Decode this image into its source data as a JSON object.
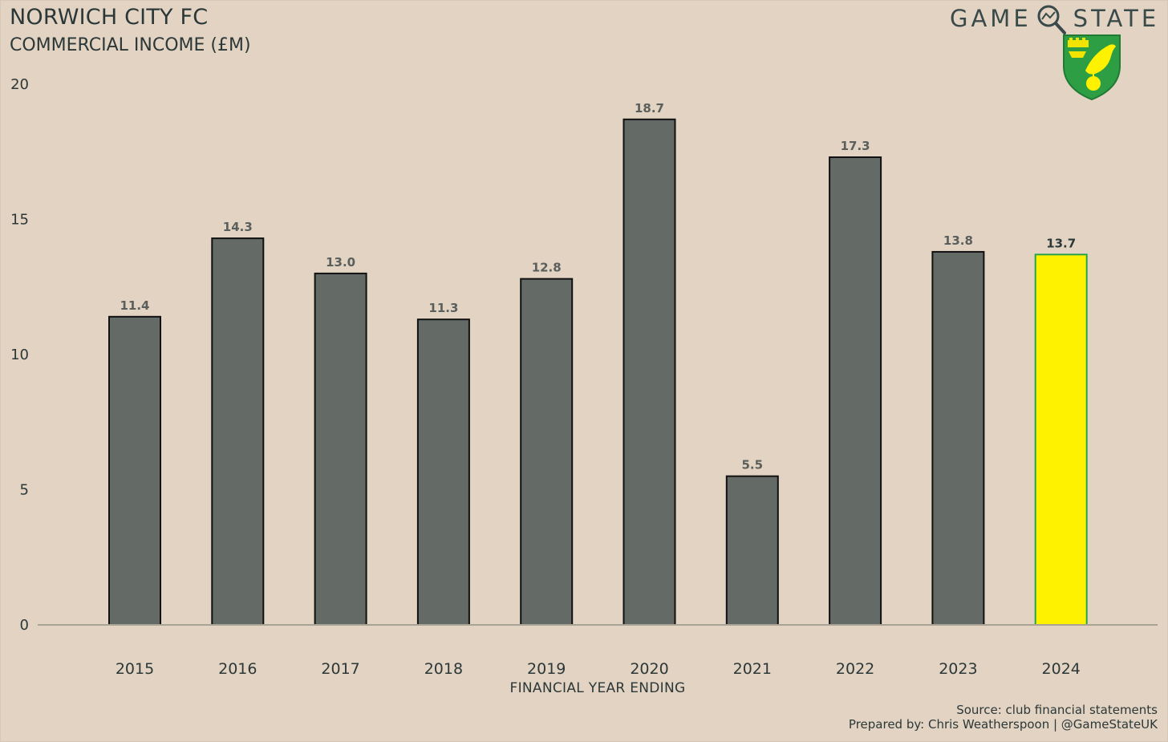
{
  "header": {
    "title": "NORWICH CITY FC",
    "subtitle": "COMMERCIAL INCOME (£M)",
    "brand_left": "GAME",
    "brand_right": "STATE"
  },
  "footer": {
    "source": "Source: club financial statements",
    "credit": "Prepared by: Chris Weatherspoon | @GameStateUK"
  },
  "colors": {
    "background": "#e2d3c3",
    "bar": "#646a65",
    "highlight": "#fff200",
    "highlight_border": "#2aa24a",
    "axis": "#a9a395"
  },
  "icons": [
    "magnifier-icon",
    "club-crest-icon"
  ],
  "chart_data": {
    "type": "bar",
    "title": "NORWICH CITY FC",
    "subtitle": "COMMERCIAL INCOME (£M)",
    "xlabel": "FINANCIAL YEAR ENDING",
    "ylabel": "",
    "categories": [
      "2015",
      "2016",
      "2017",
      "2018",
      "2019",
      "2020",
      "2021",
      "2022",
      "2023",
      "2024"
    ],
    "values": [
      11.4,
      14.3,
      13.0,
      11.3,
      12.8,
      18.7,
      5.5,
      17.3,
      13.8,
      13.7
    ],
    "data_labels": [
      "11.4",
      "14.3",
      "13.0",
      "11.3",
      "12.8",
      "18.7",
      "5.5",
      "17.3",
      "13.8",
      "13.7"
    ],
    "highlight_category": "2024",
    "ylim": [
      0,
      20
    ],
    "yticks": [
      "0",
      "5",
      "10",
      "15",
      "20"
    ],
    "grid": false,
    "legend": "none"
  }
}
